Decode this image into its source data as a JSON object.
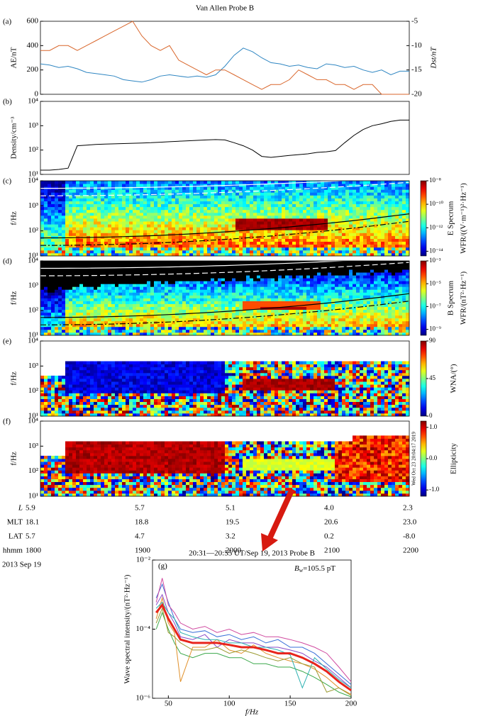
{
  "chart_data": [
    {
      "type": "line",
      "title": "Van Allen Probe B",
      "panel": "(a)",
      "ylabel": "AE/nT",
      "y2label": "Dst/nT",
      "ylim": [
        0,
        600
      ],
      "yticks": [
        0,
        200,
        400,
        600
      ],
      "y2lim": [
        -20,
        -5
      ],
      "y2ticks": [
        -20,
        -15,
        -10,
        -5
      ],
      "series": [
        {
          "color": "#2f86c2",
          "values": [
            250,
            240,
            220,
            230,
            210,
            180,
            170,
            160,
            150,
            120,
            110,
            100,
            120,
            150,
            160,
            150,
            140,
            150,
            140,
            160,
            230,
            320,
            380,
            350,
            300,
            260,
            250,
            230,
            240,
            220,
            210,
            250,
            240,
            220,
            230,
            200,
            180,
            200,
            160,
            190,
            190
          ]
        },
        {
          "color": "#d9662b",
          "axis": "y2",
          "values": [
            -11,
            -11,
            -10,
            -10,
            -11,
            -10,
            -9,
            -8,
            -7,
            -6,
            -5,
            -8,
            -10,
            -11,
            -10,
            -13,
            -14,
            -15,
            -16,
            -15,
            -15,
            -16,
            -17,
            -18,
            -19,
            -18,
            -18,
            -17,
            -15,
            -16,
            -17,
            -17,
            -18,
            -18,
            -19,
            -18,
            -18,
            -20,
            -20,
            -20,
            -20
          ]
        }
      ]
    },
    {
      "type": "line",
      "panel": "(b)",
      "ylabel": "Density/cm⁻³",
      "log": true,
      "ylim": [
        10,
        10000
      ],
      "yticks": [
        {
          "value": 10,
          "label": "10¹"
        },
        {
          "value": 100,
          "label": "10²"
        },
        {
          "value": 1000,
          "label": "10³"
        },
        {
          "value": 10000,
          "label": "10⁴"
        }
      ],
      "series": [
        {
          "color": "#000000",
          "values": [
            15,
            15,
            16,
            18,
            150,
            160,
            170,
            175,
            180,
            185,
            190,
            195,
            200,
            210,
            220,
            230,
            240,
            250,
            260,
            270,
            260,
            200,
            150,
            100,
            55,
            50,
            55,
            60,
            65,
            70,
            80,
            85,
            95,
            200,
            400,
            700,
            1000,
            1200,
            1500,
            1700,
            1700
          ]
        }
      ]
    },
    {
      "type": "spectrogram",
      "panel": "(c)",
      "ylabel": "f/Hz",
      "log": true,
      "ylim": [
        10,
        10000
      ],
      "yticks": [
        {
          "value": 10,
          "label": "10¹"
        },
        {
          "value": 100,
          "label": "10²"
        },
        {
          "value": 1000,
          "label": "10³"
        },
        {
          "value": 10000,
          "label": "10⁴"
        }
      ],
      "colorbar": {
        "label": [
          "E Specrum",
          "WFR/((V·m⁻¹)²·Hz⁻¹)"
        ],
        "log": true,
        "clim": [
          4e-15,
          1e-08
        ],
        "ticks": [
          {
            "value": 1e-08,
            "label": "10⁻⁸"
          },
          {
            "value": 1e-10,
            "label": "10⁻¹⁰"
          },
          {
            "value": 1e-12,
            "label": "10⁻¹²"
          },
          {
            "value": 1e-14,
            "label": "10⁻¹⁴"
          }
        ]
      }
    },
    {
      "type": "spectrogram",
      "panel": "(d)",
      "ylabel": "f/Hz",
      "log": true,
      "ylim": [
        10,
        10000
      ],
      "yticks": [
        {
          "value": 10,
          "label": "10¹"
        },
        {
          "value": 100,
          "label": "10²"
        },
        {
          "value": 1000,
          "label": "10³"
        },
        {
          "value": 10000,
          "label": "10⁴"
        }
      ],
      "colorbar": {
        "label": [
          "B Specrum",
          "WFR/(nT²·Hz⁻¹)"
        ],
        "log": true,
        "clim": [
          3e-10,
          0.001
        ],
        "ticks": [
          {
            "value": 0.001,
            "label": "10⁻³"
          },
          {
            "value": 1e-05,
            "label": "10⁻⁵"
          },
          {
            "value": 1e-07,
            "label": "10⁻⁷"
          },
          {
            "value": 1e-09,
            "label": "10⁻⁹"
          }
        ]
      }
    },
    {
      "type": "spectrogram",
      "panel": "(e)",
      "ylabel": "f/Hz",
      "log": true,
      "ylim": [
        10,
        10000
      ],
      "yticks": [
        {
          "value": 10,
          "label": "10¹"
        },
        {
          "value": 100,
          "label": "10²"
        },
        {
          "value": 1000,
          "label": "10³"
        },
        {
          "value": 10000,
          "label": "10⁴"
        }
      ],
      "colorbar": {
        "label": [
          "WNA/(°)"
        ],
        "clim": [
          0,
          90
        ],
        "ticks": [
          90,
          45,
          0
        ]
      }
    },
    {
      "type": "spectrogram",
      "panel": "(f)",
      "ylabel": "f/Hz",
      "log": true,
      "ylim": [
        10,
        10000
      ],
      "yticks": [
        {
          "value": 10,
          "label": "10¹"
        },
        {
          "value": 100,
          "label": "10²"
        },
        {
          "value": 1000,
          "label": "10³"
        },
        {
          "value": 10000,
          "label": "10⁴"
        }
      ],
      "colorbar": {
        "label": [
          "Ellipticity"
        ],
        "clim": [
          -1.2,
          1.2
        ],
        "ticks": [
          {
            "value": 1,
            "label": "1.0"
          },
          {
            "value": 0,
            "label": "0.0"
          },
          {
            "value": -1,
            "label": "-1.0"
          }
        ]
      }
    },
    {
      "type": "line",
      "title": "20:31—20:55 UT/Sep 19, 2013 Probe B",
      "panel": "(g)",
      "annotation": {
        "symbol": "B",
        "subscript": "w",
        "text": "=105.5 pT"
      },
      "xlabel": "f/Hz",
      "ylabel": "Wave spectral intensity/(nT²·Hz⁻¹)",
      "log": true,
      "xlim": [
        37,
        200
      ],
      "xticks": [
        50,
        100,
        150,
        200
      ],
      "ylim": [
        1e-06,
        0.01
      ],
      "yticks": [
        {
          "value": 1e-06,
          "label": "10⁻⁶"
        },
        {
          "value": 0.0001,
          "label": "10⁻⁴"
        },
        {
          "value": 0.01,
          "label": "10⁻²"
        }
      ],
      "x": [
        40,
        45,
        50,
        55,
        60,
        70,
        80,
        90,
        100,
        110,
        120,
        130,
        140,
        150,
        160,
        170,
        180,
        190,
        200
      ],
      "series": [
        {
          "color": "#3a6fd8",
          "values": [
            0.0008,
            0.002,
            0.0006,
            0.0002,
            0.0001,
            8e-05,
            9e-05,
            6e-05,
            7e-05,
            5e-05,
            6e-05,
            4e-05,
            5e-05,
            3e-05,
            3e-05,
            2e-05,
            1e-05,
            5e-06,
            2.5e-06
          ]
        },
        {
          "color": "#3aa84a",
          "values": [
            0.0001,
            0.0003,
            0.0001,
            4e-05,
            2e-05,
            1.5e-05,
            2e-05,
            2e-05,
            1.5e-05,
            1.5e-05,
            1e-05,
            1e-05,
            8e-06,
            8e-06,
            6e-06,
            4e-06,
            2.5e-06,
            1.5e-06,
            1.1e-06
          ]
        },
        {
          "color": "#8a4cc8",
          "values": [
            0.0005,
            0.001,
            0.0003,
            0.00015,
            6e-05,
            5e-05,
            7e-05,
            3e-05,
            5e-05,
            4e-05,
            4e-05,
            3e-05,
            3e-05,
            2.5e-05,
            2e-05,
            1.2e-05,
            8e-06,
            4e-06,
            2e-06
          ]
        },
        {
          "color": "#e0902a",
          "values": [
            0.0002,
            0.0008,
            0.00015,
            8e-05,
            3e-06,
            3e-05,
            3e-05,
            5e-05,
            2.5e-05,
            2e-05,
            3.5e-05,
            2e-05,
            1.5e-05,
            1.2e-05,
            1e-05,
            7e-06,
            4e-06,
            2e-06,
            1.3e-06
          ]
        },
        {
          "color": "#2ab0b0",
          "values": [
            0.0004,
            0.0006,
            0.0003,
            0.0002,
            8e-05,
            6e-05,
            5e-05,
            5e-05,
            4e-05,
            4e-05,
            3e-05,
            3e-05,
            2.5e-05,
            1.8e-05,
            2e-06,
            1.5e-05,
            7e-06,
            3.5e-06,
            2e-06
          ]
        },
        {
          "color": "#9a9a30",
          "values": [
            0.00015,
            0.0004,
            8e-05,
            6e-05,
            4e-05,
            2.5e-05,
            2.5e-05,
            3e-05,
            2e-05,
            2.5e-05,
            2e-05,
            1.5e-05,
            1.2e-05,
            1.5e-05,
            1e-05,
            8e-06,
            1.5e-06,
            2e-06,
            1.2e-06
          ]
        },
        {
          "color": "#d04aa0",
          "values": [
            0.0006,
            0.003,
            0.0005,
            0.0003,
            0.00015,
            0.0001,
            0.00012,
            8e-05,
            0.0001,
            7e-05,
            8e-05,
            6e-05,
            6e-05,
            5e-05,
            4e-05,
            3e-05,
            2e-05,
            8e-06,
            3e-06
          ]
        },
        {
          "color": "#e8241c",
          "width": 3,
          "values": [
            0.0003,
            0.0005,
            0.0002,
            0.0001,
            5e-05,
            4e-05,
            4e-05,
            4e-05,
            3.5e-05,
            3e-05,
            3e-05,
            2.5e-05,
            2e-05,
            2e-05,
            1.5e-05,
            1e-05,
            6e-06,
            3e-06,
            1.7e-06
          ]
        }
      ]
    }
  ],
  "ephemeris": {
    "rows": [
      {
        "label": "L",
        "values": [
          "5.9",
          "5.7",
          "5.1",
          "4.0",
          "2.3"
        ]
      },
      {
        "label": "MLT",
        "values": [
          "18.1",
          "18.8",
          "19.5",
          "20.6",
          "23.0"
        ]
      },
      {
        "label": "LAT",
        "values": [
          "5.7",
          "4.7",
          "3.2",
          "0.2",
          "-8.0"
        ]
      },
      {
        "label": "hhmm",
        "values": [
          "1800",
          "1900",
          "2000",
          "2100",
          "2200"
        ]
      }
    ],
    "date": "2013 Sep 19"
  },
  "stamp": "Wed Oct 23 20:04:17 2019"
}
